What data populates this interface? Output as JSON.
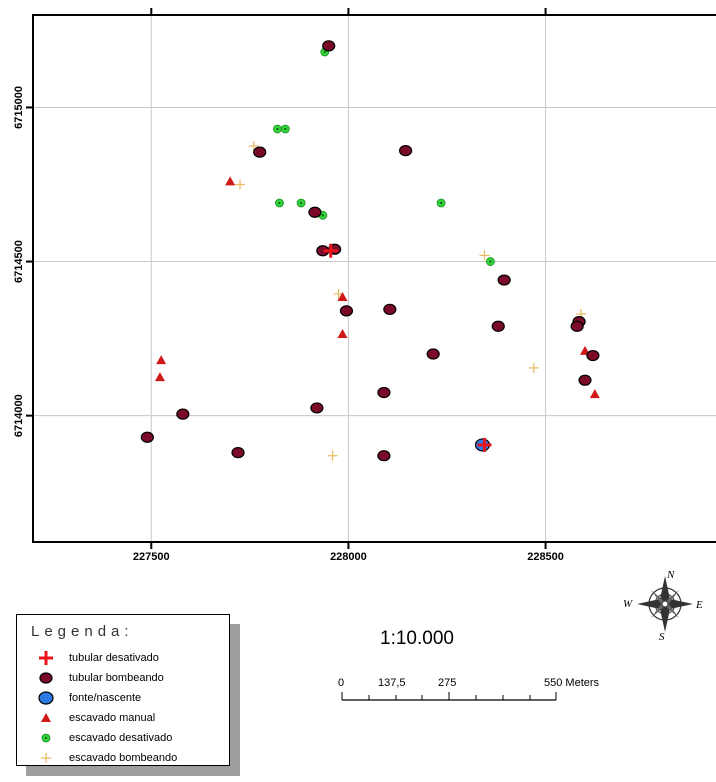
{
  "map": {
    "x_ticks": [
      "227500",
      "228000",
      "228500"
    ],
    "y_ticks": [
      "6715000",
      "6714500",
      "6714000"
    ],
    "x_range": [
      227200,
      228950
    ],
    "y_range": [
      6713590,
      6715300
    ],
    "colors": {
      "tubular_desativado": "#e8141b",
      "tubular_bombeando": "#7a0a28",
      "fonte_nascente": "#2c7be5",
      "escavado_manual": "#d01818",
      "escavado_desativado": "#33d13a",
      "escavado_bombeando": "#e8b860"
    }
  },
  "points": {
    "tubular_desativado": [
      [
        227955,
        6714535
      ],
      [
        228345,
        6713905
      ]
    ],
    "tubular_bombeando": [
      [
        227950,
        6715200
      ],
      [
        227775,
        6714855
      ],
      [
        228145,
        6714860
      ],
      [
        227915,
        6714660
      ],
      [
        227935,
        6714535
      ],
      [
        227965,
        6714540
      ],
      [
        228395,
        6714440
      ],
      [
        227995,
        6714340
      ],
      [
        228105,
        6714345
      ],
      [
        228380,
        6714290
      ],
      [
        228585,
        6714305
      ],
      [
        228580,
        6714290
      ],
      [
        228620,
        6714195
      ],
      [
        228215,
        6714200
      ],
      [
        228600,
        6714115
      ],
      [
        228090,
        6714075
      ],
      [
        227920,
        6714025
      ],
      [
        227580,
        6714005
      ],
      [
        227490,
        6713930
      ],
      [
        227720,
        6713880
      ],
      [
        228090,
        6713870
      ],
      [
        228340,
        6713905
      ]
    ],
    "fonte_nascente": [
      [
        228340,
        6713905
      ]
    ],
    "escavado_manual": [
      [
        227700,
        6714760
      ],
      [
        227985,
        6714385
      ],
      [
        227985,
        6714265
      ],
      [
        227525,
        6714180
      ],
      [
        227522,
        6714125
      ],
      [
        228600,
        6714210
      ],
      [
        228625,
        6714070
      ]
    ],
    "escavado_desativado": [
      [
        227940,
        6715180
      ],
      [
        227820,
        6714930
      ],
      [
        227840,
        6714930
      ],
      [
        227825,
        6714690
      ],
      [
        227880,
        6714690
      ],
      [
        227935,
        6714650
      ],
      [
        228235,
        6714690
      ],
      [
        228360,
        6714500
      ]
    ],
    "escavado_bombeando": [
      [
        227760,
        6714875
      ],
      [
        227725,
        6714750
      ],
      [
        228345,
        6714520
      ],
      [
        227975,
        6714395
      ],
      [
        228590,
        6714330
      ],
      [
        228470,
        6714155
      ],
      [
        227960,
        6713870
      ]
    ]
  },
  "legend": {
    "title": "Legenda:",
    "items": [
      {
        "key": "tubular_desativado",
        "label": "tubular desativado"
      },
      {
        "key": "tubular_bombeando",
        "label": "tubular bombeando"
      },
      {
        "key": "fonte_nascente",
        "label": "fonte/nascente"
      },
      {
        "key": "escavado_manual",
        "label": "escavado manual"
      },
      {
        "key": "escavado_desativado",
        "label": "escavado desativado"
      },
      {
        "key": "escavado_bombeando",
        "label": "escavado bombeando"
      }
    ]
  },
  "scale": {
    "ratio": "1:10.000",
    "labels": [
      "0",
      "137,5",
      "275",
      "550 Meters"
    ]
  },
  "compass": {
    "n": "N",
    "s": "S",
    "e": "E",
    "w": "W"
  }
}
